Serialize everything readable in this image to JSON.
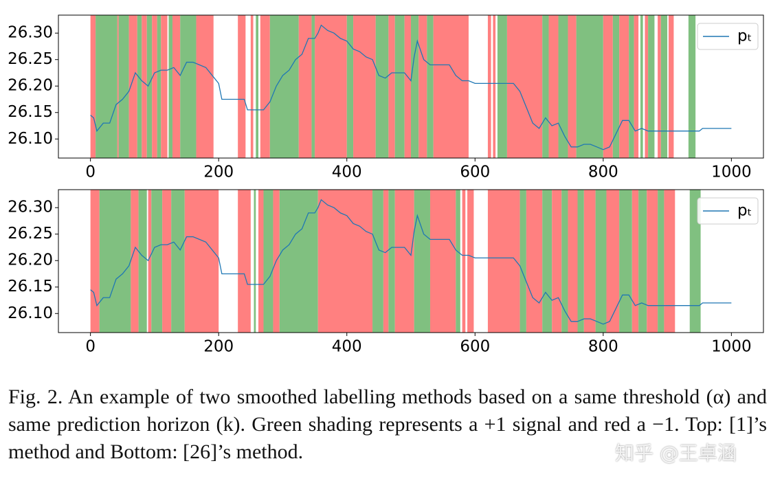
{
  "chart_data": [
    {
      "type": "line",
      "x": [
        0,
        5,
        10,
        20,
        30,
        40,
        50,
        60,
        70,
        80,
        90,
        100,
        110,
        120,
        130,
        140,
        150,
        160,
        170,
        180,
        190,
        200,
        205,
        240,
        245,
        270,
        280,
        290,
        300,
        310,
        320,
        330,
        340,
        350,
        355,
        360,
        370,
        380,
        390,
        400,
        410,
        420,
        430,
        440,
        450,
        460,
        470,
        480,
        490,
        500,
        505,
        510,
        520,
        530,
        540,
        550,
        560,
        570,
        580,
        590,
        600,
        650,
        660,
        670,
        680,
        690,
        700,
        710,
        720,
        730,
        740,
        750,
        760,
        770,
        780,
        790,
        800,
        810,
        820,
        830,
        840,
        850,
        860,
        870,
        880,
        900,
        950,
        955,
        1000
      ],
      "series": [
        {
          "name": "pₜ",
          "color": "#1f77b4",
          "values": [
            26.145,
            26.14,
            26.115,
            26.13,
            26.13,
            26.165,
            26.175,
            26.19,
            26.225,
            26.21,
            26.2,
            26.225,
            26.23,
            26.23,
            26.235,
            26.22,
            26.245,
            26.245,
            26.24,
            26.235,
            26.22,
            26.205,
            26.175,
            26.175,
            26.155,
            26.155,
            26.17,
            26.2,
            26.22,
            26.23,
            26.25,
            26.26,
            26.29,
            26.29,
            26.3,
            26.315,
            26.305,
            26.3,
            26.29,
            26.285,
            26.27,
            26.265,
            26.255,
            26.25,
            26.22,
            26.215,
            26.225,
            26.225,
            26.225,
            26.21,
            26.255,
            26.285,
            26.25,
            26.24,
            26.24,
            26.24,
            26.24,
            26.22,
            26.21,
            26.21,
            26.205,
            26.205,
            26.205,
            26.19,
            26.16,
            26.13,
            26.12,
            26.14,
            26.125,
            26.13,
            26.105,
            26.085,
            26.085,
            26.09,
            26.09,
            26.085,
            26.08,
            26.085,
            26.11,
            26.135,
            26.135,
            26.115,
            26.12,
            26.115,
            26.115,
            26.115,
            26.115,
            26.12,
            26.12
          ]
        }
      ],
      "spans": [
        [
          0,
          8,
          -1
        ],
        [
          8,
          42,
          1
        ],
        [
          42,
          44,
          -1
        ],
        [
          44,
          60,
          1
        ],
        [
          60,
          73,
          -1
        ],
        [
          73,
          80,
          1
        ],
        [
          80,
          88,
          -1
        ],
        [
          88,
          96,
          1
        ],
        [
          96,
          104,
          -1
        ],
        [
          104,
          110,
          1
        ],
        [
          110,
          120,
          -1
        ],
        [
          122,
          128,
          1
        ],
        [
          128,
          140,
          -1
        ],
        [
          140,
          165,
          1
        ],
        [
          165,
          192,
          -1
        ],
        [
          230,
          242,
          -1
        ],
        [
          250,
          254,
          -1
        ],
        [
          258,
          262,
          1
        ],
        [
          265,
          280,
          -1
        ],
        [
          280,
          325,
          1
        ],
        [
          325,
          345,
          -1
        ],
        [
          345,
          350,
          1
        ],
        [
          350,
          400,
          -1
        ],
        [
          400,
          410,
          1
        ],
        [
          410,
          445,
          -1
        ],
        [
          445,
          465,
          1
        ],
        [
          465,
          475,
          -1
        ],
        [
          475,
          490,
          1
        ],
        [
          490,
          500,
          -1
        ],
        [
          500,
          512,
          1
        ],
        [
          512,
          525,
          -1
        ],
        [
          525,
          535,
          1
        ],
        [
          535,
          590,
          -1
        ],
        [
          620,
          625,
          -1
        ],
        [
          628,
          632,
          -1
        ],
        [
          635,
          650,
          1
        ],
        [
          650,
          705,
          -1
        ],
        [
          705,
          715,
          1
        ],
        [
          715,
          730,
          -1
        ],
        [
          730,
          745,
          1
        ],
        [
          745,
          758,
          -1
        ],
        [
          758,
          800,
          1
        ],
        [
          800,
          815,
          -1
        ],
        [
          815,
          825,
          1
        ],
        [
          825,
          840,
          -1
        ],
        [
          840,
          848,
          1
        ],
        [
          848,
          855,
          -1
        ],
        [
          858,
          862,
          1
        ],
        [
          865,
          870,
          -1
        ],
        [
          870,
          880,
          1
        ],
        [
          885,
          890,
          -1
        ],
        [
          890,
          900,
          1
        ],
        [
          902,
          910,
          -1
        ],
        [
          933,
          944,
          1
        ]
      ],
      "signal_colors": {
        "1": "#80c080",
        "-1": "#ff8080"
      },
      "xlim": [
        -50,
        1050
      ],
      "ylim": [
        26.064,
        26.334
      ],
      "xticks": [
        0,
        200,
        400,
        600,
        800,
        1000
      ],
      "yticks": [
        {
          "value": 26.1,
          "label": "26.10"
        },
        26.15,
        {
          "value": 26.2,
          "label": "26.20"
        },
        26.25,
        {
          "value": 26.3,
          "label": "26.30"
        }
      ],
      "legend": "upper right"
    },
    {
      "type": "line",
      "x": [
        0,
        5,
        10,
        20,
        30,
        40,
        50,
        60,
        70,
        80,
        90,
        100,
        110,
        120,
        130,
        140,
        150,
        160,
        170,
        180,
        190,
        200,
        205,
        240,
        245,
        270,
        280,
        290,
        300,
        310,
        320,
        330,
        340,
        350,
        355,
        360,
        370,
        380,
        390,
        400,
        410,
        420,
        430,
        440,
        450,
        460,
        470,
        480,
        490,
        500,
        505,
        510,
        520,
        530,
        540,
        550,
        560,
        570,
        580,
        590,
        600,
        650,
        660,
        670,
        680,
        690,
        700,
        710,
        720,
        730,
        740,
        750,
        760,
        770,
        780,
        790,
        800,
        810,
        820,
        830,
        840,
        850,
        860,
        870,
        880,
        900,
        950,
        955,
        1000
      ],
      "series": [
        {
          "name": "pₜ",
          "color": "#1f77b4",
          "values": [
            26.145,
            26.14,
            26.115,
            26.13,
            26.13,
            26.165,
            26.175,
            26.19,
            26.225,
            26.21,
            26.2,
            26.225,
            26.23,
            26.23,
            26.235,
            26.22,
            26.245,
            26.245,
            26.24,
            26.235,
            26.22,
            26.205,
            26.175,
            26.175,
            26.155,
            26.155,
            26.17,
            26.2,
            26.22,
            26.23,
            26.25,
            26.26,
            26.29,
            26.29,
            26.3,
            26.315,
            26.305,
            26.3,
            26.29,
            26.285,
            26.27,
            26.265,
            26.255,
            26.25,
            26.22,
            26.215,
            26.225,
            26.225,
            26.225,
            26.21,
            26.255,
            26.285,
            26.25,
            26.24,
            26.24,
            26.24,
            26.24,
            26.22,
            26.21,
            26.21,
            26.205,
            26.205,
            26.205,
            26.19,
            26.16,
            26.13,
            26.12,
            26.14,
            26.125,
            26.13,
            26.105,
            26.085,
            26.085,
            26.09,
            26.09,
            26.085,
            26.08,
            26.085,
            26.11,
            26.135,
            26.135,
            26.115,
            26.12,
            26.115,
            26.115,
            26.115,
            26.115,
            26.12,
            26.12
          ]
        }
      ],
      "spans": [
        [
          0,
          14,
          -1
        ],
        [
          14,
          63,
          1
        ],
        [
          63,
          75,
          -1
        ],
        [
          75,
          88,
          1
        ],
        [
          90,
          95,
          -1
        ],
        [
          95,
          112,
          1
        ],
        [
          112,
          126,
          -1
        ],
        [
          126,
          147,
          1
        ],
        [
          147,
          200,
          -1
        ],
        [
          230,
          250,
          -1
        ],
        [
          255,
          258,
          1
        ],
        [
          262,
          270,
          -1
        ],
        [
          270,
          285,
          1
        ],
        [
          285,
          295,
          -1
        ],
        [
          295,
          355,
          1
        ],
        [
          355,
          440,
          -1
        ],
        [
          440,
          457,
          1
        ],
        [
          457,
          465,
          -1
        ],
        [
          465,
          475,
          1
        ],
        [
          475,
          505,
          -1
        ],
        [
          505,
          530,
          1
        ],
        [
          530,
          570,
          -1
        ],
        [
          570,
          577,
          1
        ],
        [
          580,
          585,
          -1
        ],
        [
          588,
          598,
          -1
        ],
        [
          620,
          670,
          -1
        ],
        [
          670,
          680,
          1
        ],
        [
          680,
          705,
          -1
        ],
        [
          705,
          720,
          1
        ],
        [
          720,
          735,
          -1
        ],
        [
          735,
          745,
          1
        ],
        [
          745,
          760,
          -1
        ],
        [
          760,
          770,
          1
        ],
        [
          770,
          788,
          -1
        ],
        [
          788,
          805,
          1
        ],
        [
          805,
          825,
          -1
        ],
        [
          825,
          845,
          1
        ],
        [
          845,
          855,
          -1
        ],
        [
          855,
          868,
          1
        ],
        [
          868,
          885,
          -1
        ],
        [
          885,
          895,
          1
        ],
        [
          895,
          912,
          -1
        ],
        [
          935,
          952,
          1
        ]
      ],
      "signal_colors": {
        "1": "#80c080",
        "-1": "#ff8080"
      },
      "xlim": [
        -50,
        1050
      ],
      "ylim": [
        26.064,
        26.334
      ],
      "xticks": [
        0,
        200,
        400,
        600,
        800,
        1000
      ],
      "yticks": [
        {
          "value": 26.1,
          "label": "26.10"
        },
        26.15,
        {
          "value": 26.2,
          "label": "26.20"
        },
        26.25,
        {
          "value": 26.3,
          "label": "26.30"
        }
      ],
      "legend": "upper right"
    }
  ],
  "caption": "Fig. 2.   An example of two smoothed labelling methods based on a same threshold (α) and same prediction horizon (k). Green shading represents a +1 signal and red a −1. Top: [1]’s method and Bottom: [26]’s method.",
  "watermark": "知乎 @王卓涵"
}
